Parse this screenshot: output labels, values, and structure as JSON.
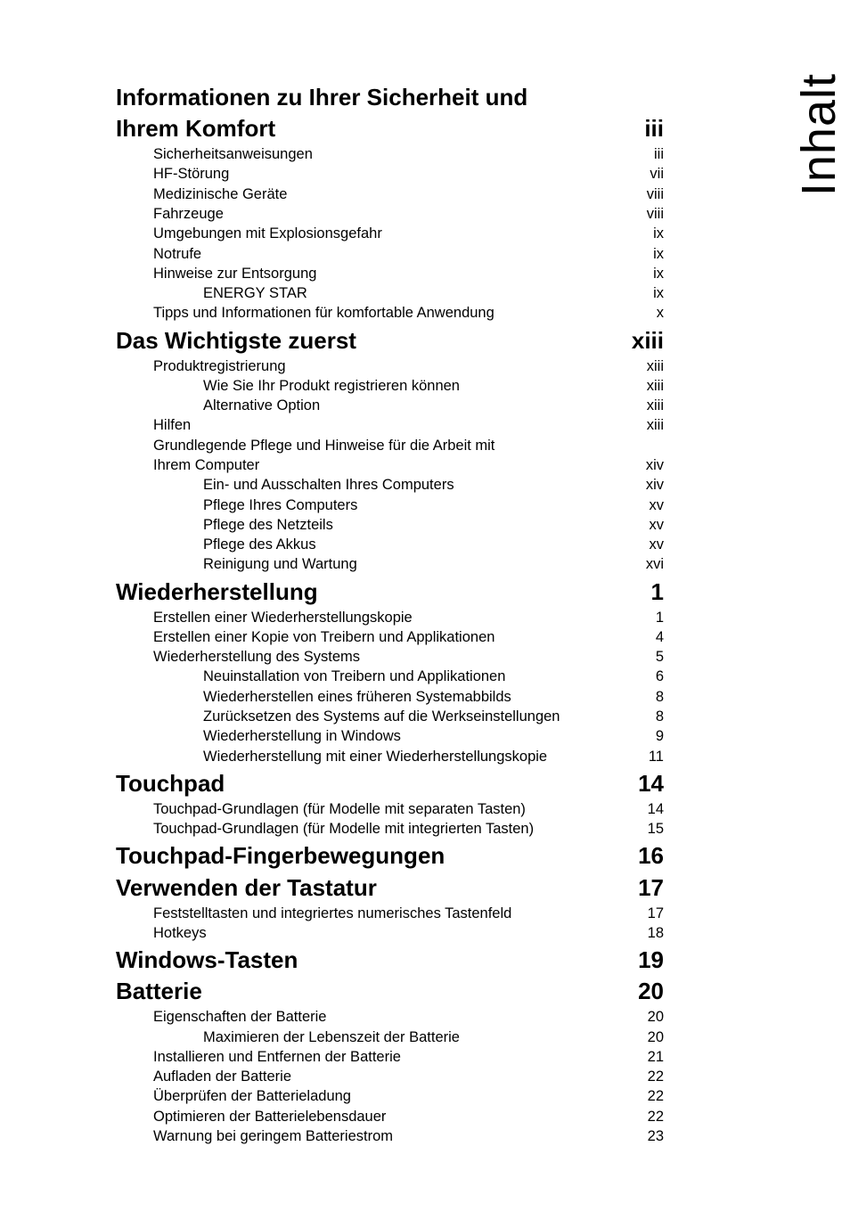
{
  "sideTitle": "Inhalt",
  "toc": [
    {
      "level": "h1",
      "label": "Informationen zu Ihrer Sicherheit und",
      "page": "",
      "pgClass": ""
    },
    {
      "level": "h1",
      "label": "Ihrem Komfort",
      "page": "iii",
      "pgClass": "pg-bold"
    },
    {
      "level": "h2",
      "label": "Sicherheitsanweisungen",
      "page": "iii",
      "pgClass": "pg"
    },
    {
      "level": "h2",
      "label": "HF-Störung",
      "page": "vii",
      "pgClass": "pg"
    },
    {
      "level": "h2",
      "label": "Medizinische Geräte",
      "page": "viii",
      "pgClass": "pg"
    },
    {
      "level": "h2",
      "label": "Fahrzeuge",
      "page": "viii",
      "pgClass": "pg"
    },
    {
      "level": "h2",
      "label": "Umgebungen mit Explosionsgefahr",
      "page": "ix",
      "pgClass": "pg"
    },
    {
      "level": "h2",
      "label": "Notrufe",
      "page": "ix",
      "pgClass": "pg"
    },
    {
      "level": "h2",
      "label": "Hinweise zur Entsorgung",
      "page": "ix",
      "pgClass": "pg"
    },
    {
      "level": "h3",
      "label": "ENERGY STAR",
      "page": "ix",
      "pgClass": "pg"
    },
    {
      "level": "h2",
      "label": "Tipps und Informationen für komfortable Anwendung",
      "page": "x",
      "pgClass": "pg"
    },
    {
      "level": "h1",
      "label": "Das Wichtigste zuerst",
      "page": "xiii",
      "pgClass": "pg-bold"
    },
    {
      "level": "h2",
      "label": "Produktregistrierung",
      "page": "xiii",
      "pgClass": "pg"
    },
    {
      "level": "h3",
      "label": "Wie Sie Ihr Produkt registrieren können",
      "page": "xiii",
      "pgClass": "pg"
    },
    {
      "level": "h3",
      "label": "Alternative Option",
      "page": "xiii",
      "pgClass": "pg"
    },
    {
      "level": "h2",
      "label": "Hilfen",
      "page": "xiii",
      "pgClass": "pg"
    },
    {
      "level": "h2",
      "label": "Grundlegende Pflege und Hinweise für die Arbeit mit",
      "page": "",
      "pgClass": ""
    },
    {
      "level": "h2",
      "label": "Ihrem Computer",
      "page": "xiv",
      "pgClass": "pg"
    },
    {
      "level": "h3",
      "label": "Ein- und Ausschalten Ihres Computers",
      "page": "xiv",
      "pgClass": "pg"
    },
    {
      "level": "h3",
      "label": "Pflege Ihres Computers",
      "page": "xv",
      "pgClass": "pg"
    },
    {
      "level": "h3",
      "label": "Pflege des Netzteils",
      "page": "xv",
      "pgClass": "pg"
    },
    {
      "level": "h3",
      "label": "Pflege des Akkus",
      "page": "xv",
      "pgClass": "pg"
    },
    {
      "level": "h3",
      "label": "Reinigung und Wartung",
      "page": "xvi",
      "pgClass": "pg"
    },
    {
      "level": "h1",
      "label": "Wiederherstellung",
      "page": "1",
      "pgClass": "pg-bold"
    },
    {
      "level": "h2",
      "label": "Erstellen einer Wiederherstellungskopie",
      "page": "1",
      "pgClass": "pg"
    },
    {
      "level": "h2",
      "label": "Erstellen einer Kopie von Treibern und Applikationen",
      "page": "4",
      "pgClass": "pg"
    },
    {
      "level": "h2",
      "label": "Wiederherstellung des Systems",
      "page": "5",
      "pgClass": "pg"
    },
    {
      "level": "h3",
      "label": "Neuinstallation von Treibern und Applikationen",
      "page": "6",
      "pgClass": "pg"
    },
    {
      "level": "h3",
      "label": "Wiederherstellen eines früheren Systemabbilds",
      "page": "8",
      "pgClass": "pg"
    },
    {
      "level": "h3",
      "label": "Zurücksetzen des Systems auf die Werkseinstellungen",
      "page": "8",
      "pgClass": "pg"
    },
    {
      "level": "h3",
      "label": "Wiederherstellung in Windows",
      "page": "9",
      "pgClass": "pg"
    },
    {
      "level": "h3",
      "label": "Wiederherstellung mit einer Wiederherstellungskopie",
      "page": "11",
      "pgClass": "pg"
    },
    {
      "level": "h1",
      "label": "Touchpad",
      "page": "14",
      "pgClass": "pg-bold"
    },
    {
      "level": "h2",
      "label": "Touchpad-Grundlagen (für Modelle mit separaten Tasten)",
      "page": "14",
      "pgClass": "pg"
    },
    {
      "level": "h2",
      "label": "Touchpad-Grundlagen (für Modelle mit integrierten Tasten)",
      "page": "15",
      "pgClass": "pg"
    },
    {
      "level": "h1",
      "label": "Touchpad-Fingerbewegungen",
      "page": "16",
      "pgClass": "pg-bold"
    },
    {
      "level": "h1",
      "label": "Verwenden der Tastatur",
      "page": "17",
      "pgClass": "pg-bold"
    },
    {
      "level": "h2",
      "label": "Feststelltasten und integriertes numerisches Tastenfeld",
      "page": "17",
      "pgClass": "pg"
    },
    {
      "level": "h2",
      "label": "Hotkeys",
      "page": "18",
      "pgClass": "pg"
    },
    {
      "level": "h1",
      "label": "Windows-Tasten",
      "page": "19",
      "pgClass": "pg-bold"
    },
    {
      "level": "h1",
      "label": "Batterie",
      "page": "20",
      "pgClass": "pg-bold"
    },
    {
      "level": "h2",
      "label": "Eigenschaften der Batterie",
      "page": "20",
      "pgClass": "pg"
    },
    {
      "level": "h3",
      "label": "Maximieren der Lebenszeit der Batterie",
      "page": "20",
      "pgClass": "pg"
    },
    {
      "level": "h2",
      "label": "Installieren und Entfernen der Batterie",
      "page": "21",
      "pgClass": "pg"
    },
    {
      "level": "h2",
      "label": "Aufladen der Batterie",
      "page": "22",
      "pgClass": "pg"
    },
    {
      "level": "h2",
      "label": "Überprüfen der Batterieladung",
      "page": "22",
      "pgClass": "pg"
    },
    {
      "level": "h2",
      "label": "Optimieren der Batterielebensdauer",
      "page": "22",
      "pgClass": "pg"
    },
    {
      "level": "h2",
      "label": "Warnung bei geringem Batteriestrom",
      "page": "23",
      "pgClass": "pg"
    }
  ]
}
